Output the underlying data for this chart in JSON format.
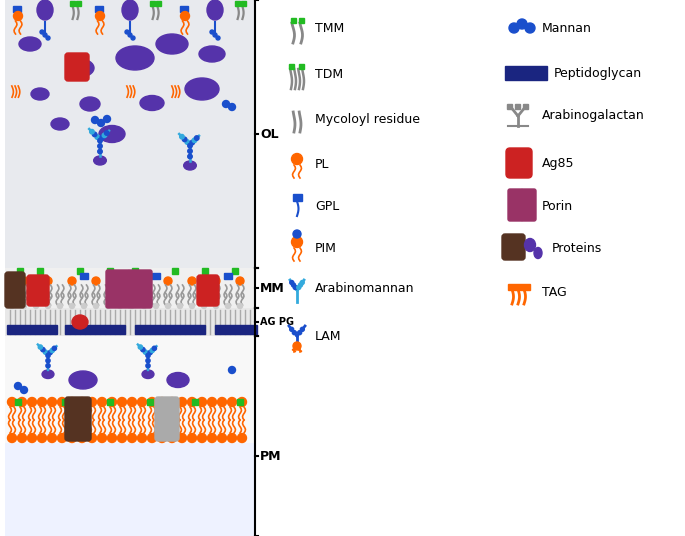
{
  "bg_color": "#ffffff",
  "colors": {
    "purple": "#5533aa",
    "orange": "#ff6600",
    "blue": "#1a4fcc",
    "cyan": "#33aadd",
    "green": "#22bb22",
    "red": "#cc2222",
    "dark_navy": "#1a2580",
    "magenta": "#993366",
    "brown": "#553322",
    "gray": "#888888",
    "light_gray": "#cccccc"
  },
  "labels": {
    "TMM": "TMM",
    "TDM": "TDM",
    "Mycoloyl": "Mycoloyl residue",
    "PL": "PL",
    "GPL": "GPL",
    "PIM": "PIM",
    "Arabinomannan": "Arabinomannan",
    "LAM": "LAM",
    "Mannan": "Mannan",
    "Peptidoglycan": "Peptidoglycan",
    "Arabinogalactan": "Arabinogalactan",
    "Ag85": "Ag85",
    "Porin": "Porin",
    "Proteins": "Proteins",
    "TAG": "TAG"
  }
}
